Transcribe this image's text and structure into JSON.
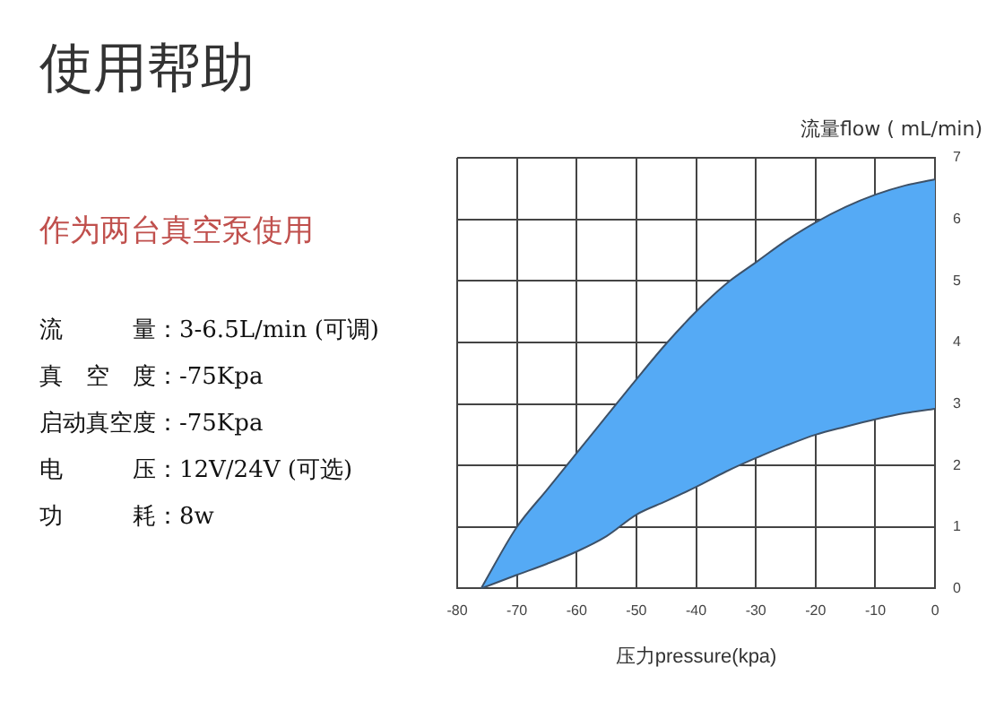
{
  "chart_data": {
    "type": "area",
    "title": "使用帮助",
    "subtitle": "作为两台真空泵使用",
    "xlabel": "压力pressure(kpa)",
    "ylabel": "流量flow ( mL/min)",
    "annotations": [
      "流　　　量：3-6.5L/min (可调)",
      "真　空　度：-75Kpa",
      "启动真空度：-75Kpa",
      "电　　　压：12V/24V (可选)",
      "功　　　耗：8w"
    ],
    "x": [
      -76,
      -70,
      -65,
      -60,
      -55,
      -50,
      -45,
      -40,
      -35,
      -30,
      -25,
      -20,
      -15,
      -10,
      -5,
      0
    ],
    "series": [
      {
        "type": "line",
        "color": "#3d5168",
        "values": [
          0,
          0.22,
          0.4,
          0.6,
          0.85,
          1.2,
          1.42,
          1.65,
          1.9,
          2.12,
          2.32,
          2.5,
          2.63,
          2.75,
          2.85,
          2.92
        ]
      },
      {
        "color": "#55aaf5",
        "values": [
          0,
          1,
          1.6,
          2.2,
          2.8,
          3.4,
          3.98,
          4.5,
          4.95,
          5.3,
          5.65,
          5.95,
          6.2,
          6.4,
          6.55,
          6.65
        ]
      }
    ],
    "xlim": [
      -80,
      0
    ],
    "xticks": [
      -80,
      -70,
      -60,
      -50,
      -40,
      -30,
      -20,
      -10,
      0
    ],
    "ylim": [
      0,
      7
    ],
    "yticks": [
      0,
      1,
      2,
      3,
      4,
      5,
      6,
      7
    ],
    "grid": true,
    "legend": false
  }
}
